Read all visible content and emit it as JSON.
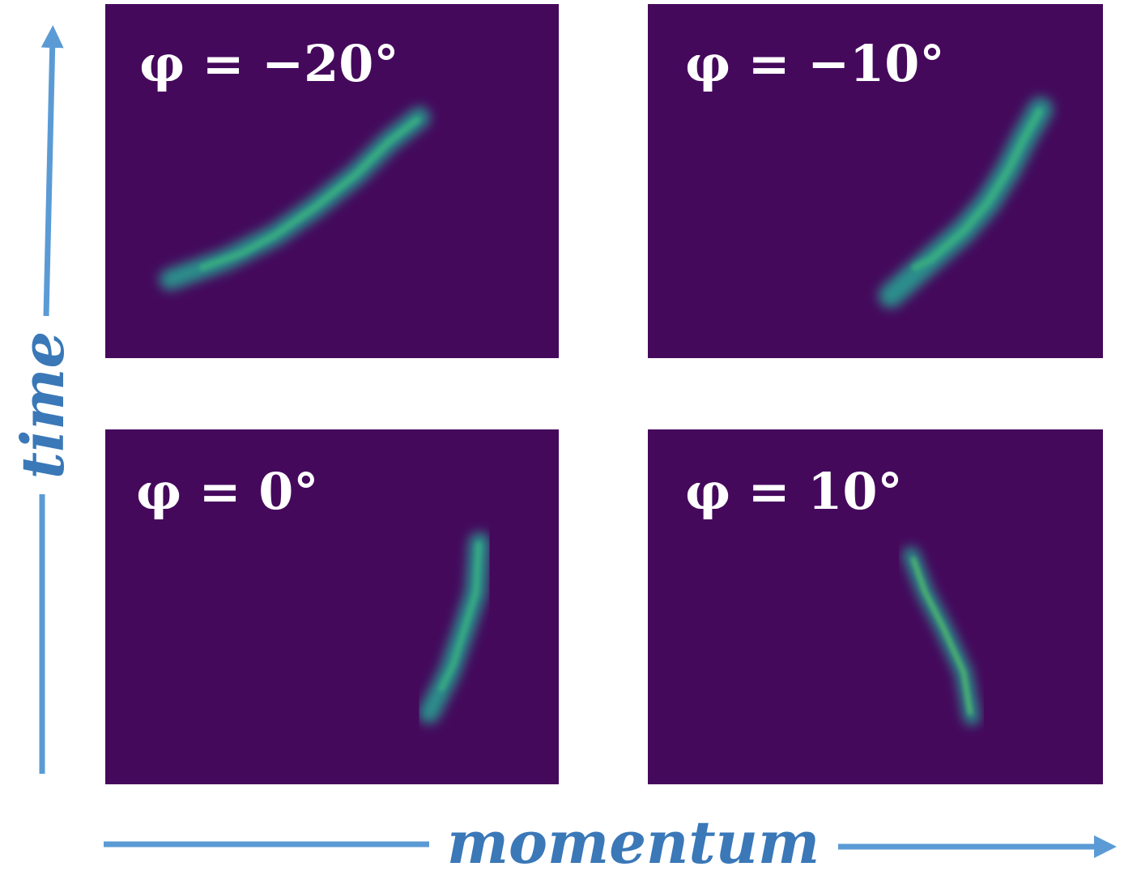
{
  "axes": {
    "vertical": "time",
    "horizontal": "momentum"
  },
  "panels": [
    {
      "label": "φ = −20°"
    },
    {
      "label": "φ = −10°"
    },
    {
      "label": "φ = 0°"
    },
    {
      "label": "φ = 10°"
    }
  ]
}
